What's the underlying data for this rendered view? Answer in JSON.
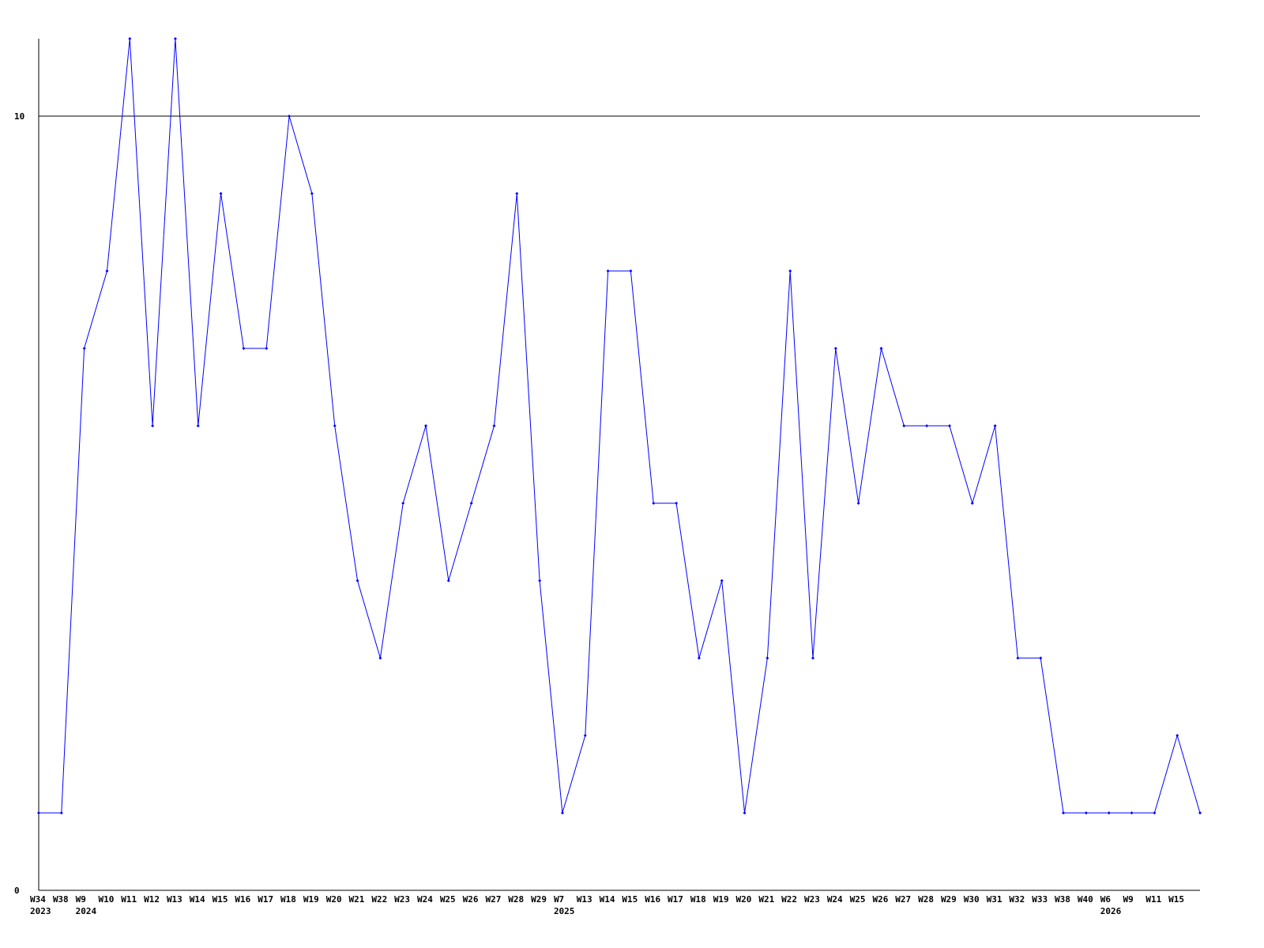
{
  "chart_data": {
    "type": "line",
    "title": "",
    "xlabel": "",
    "ylabel": "",
    "ylim": [
      0,
      11
    ],
    "yticks": [
      "0",
      "10"
    ],
    "grid": "horizontal line at 10",
    "line_color": "#0000ff",
    "x": [
      "W34",
      "W38",
      "W9",
      "W10",
      "W11",
      "W12",
      "W13",
      "W14",
      "W15",
      "W16",
      "W17",
      "W18",
      "W19",
      "W20",
      "W21",
      "W22",
      "W23",
      "W24",
      "W25",
      "W26",
      "W27",
      "W28",
      "W29",
      "W7",
      "W13",
      "W14",
      "W15",
      "W16",
      "W17",
      "W18",
      "W19",
      "W20",
      "W21",
      "W22",
      "W23",
      "W24",
      "W25",
      "W26",
      "W27",
      "W28",
      "W29",
      "W30",
      "W31",
      "W32",
      "W33",
      "W38",
      "W40",
      "W6",
      "W9",
      "W11",
      "W15",
      ""
    ],
    "years": [
      {
        "label": "2023",
        "index": 0
      },
      {
        "label": "2024",
        "index": 2
      },
      {
        "label": "2025",
        "index": 23
      },
      {
        "label": "2026",
        "index": 47
      }
    ],
    "values": [
      1,
      1,
      7,
      8,
      11,
      6,
      11,
      6,
      9,
      7,
      7,
      10,
      9,
      6,
      4,
      3,
      5,
      6,
      4,
      5,
      6,
      9,
      4,
      1,
      2,
      8,
      8,
      5,
      5,
      3,
      4,
      1,
      3,
      8,
      3,
      7,
      5,
      7,
      6,
      6,
      6,
      5,
      6,
      3,
      3,
      1,
      1,
      1,
      1,
      1,
      2,
      1
    ]
  }
}
